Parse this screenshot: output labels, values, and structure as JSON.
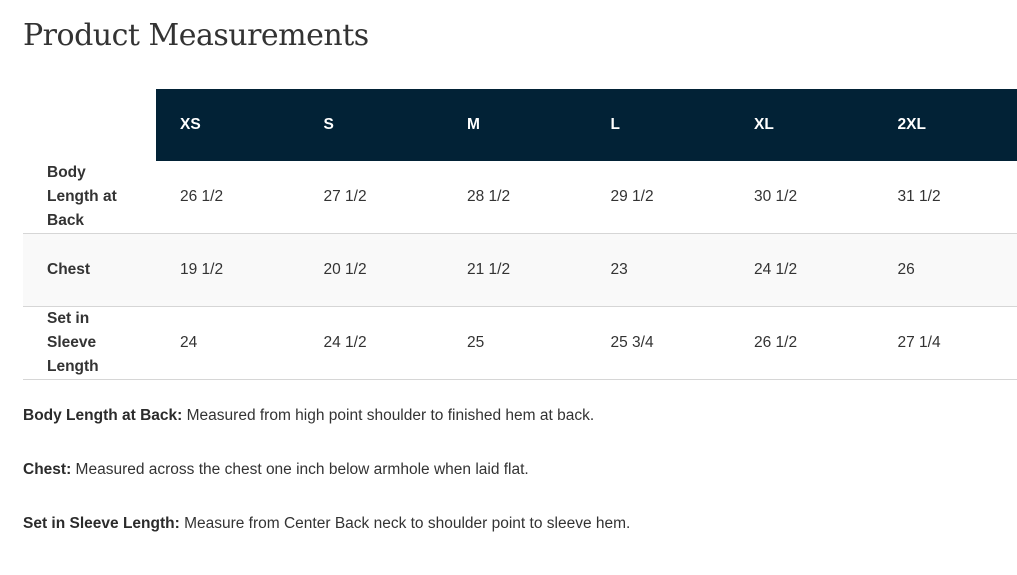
{
  "title": "Product Measurements",
  "table": {
    "headers": [
      "XS",
      "S",
      "M",
      "L",
      "XL",
      "2XL"
    ],
    "rows": [
      {
        "label": "Body Length at Back",
        "values": [
          "26 1/2",
          "27 1/2",
          "28 1/2",
          "29 1/2",
          "30 1/2",
          "31 1/2"
        ]
      },
      {
        "label": "Chest",
        "values": [
          "19 1/2",
          "20 1/2",
          "21 1/2",
          "23",
          "24 1/2",
          "26"
        ]
      },
      {
        "label": "Set in Sleeve Length",
        "values": [
          "24",
          "24 1/2",
          "25",
          "25 3/4",
          "26 1/2",
          "27 1/4"
        ]
      }
    ]
  },
  "notes": [
    {
      "term": "Body Length at Back:",
      "text": " Measured from high point shoulder to finished hem at back."
    },
    {
      "term": "Chest:",
      "text": " Measured across the chest one inch below armhole when laid flat."
    },
    {
      "term": "Set in Sleeve Length:",
      "text": " Measure from Center Back neck to shoulder point to sleeve hem."
    }
  ],
  "colors": {
    "header_bg": "#022236",
    "alt_row_bg": "#f9f9f9"
  }
}
